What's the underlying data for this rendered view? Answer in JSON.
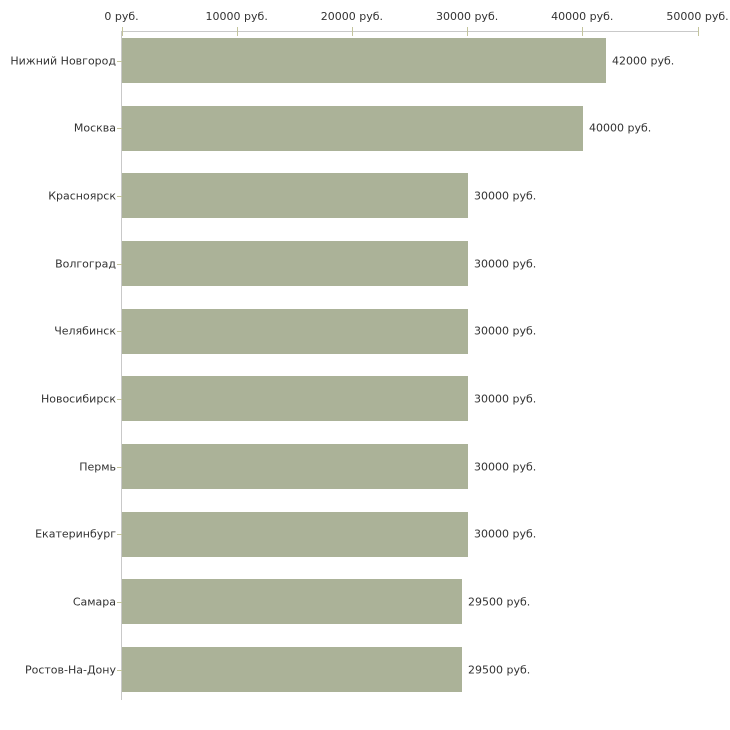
{
  "chart_data": {
    "type": "bar",
    "orientation": "horizontal",
    "title": "",
    "xlabel": "",
    "ylabel": "",
    "grid": "off",
    "legend": "none",
    "xlim": [
      0,
      50000
    ],
    "x_axis_position": "top",
    "x_ticks": [
      0,
      10000,
      20000,
      30000,
      40000,
      50000
    ],
    "x_tick_labels": [
      "0 руб.",
      "10000 руб.",
      "20000 руб.",
      "30000 руб.",
      "40000 руб.",
      "50000 руб."
    ],
    "categories": [
      "Нижний Новгород",
      "Москва",
      "Красноярск",
      "Волгоград",
      "Челябинск",
      "Новосибирск",
      "Пермь",
      "Екатеринбург",
      "Самара",
      "Ростов-На-Дону"
    ],
    "values": [
      42000,
      40000,
      30000,
      30000,
      30000,
      30000,
      30000,
      30000,
      29500,
      29500
    ],
    "value_labels": [
      "42000 руб.",
      "40000 руб.",
      "30000 руб.",
      "30000 руб.",
      "30000 руб.",
      "30000 руб.",
      "30000 руб.",
      "30000 руб.",
      "29500 руб.",
      "29500 руб."
    ],
    "colors": {
      "bar": "#abb298",
      "axis_line": "#c9c9c9",
      "tick_mark": "#c3c49c",
      "text": "#333333",
      "background": "#ffffff"
    }
  }
}
